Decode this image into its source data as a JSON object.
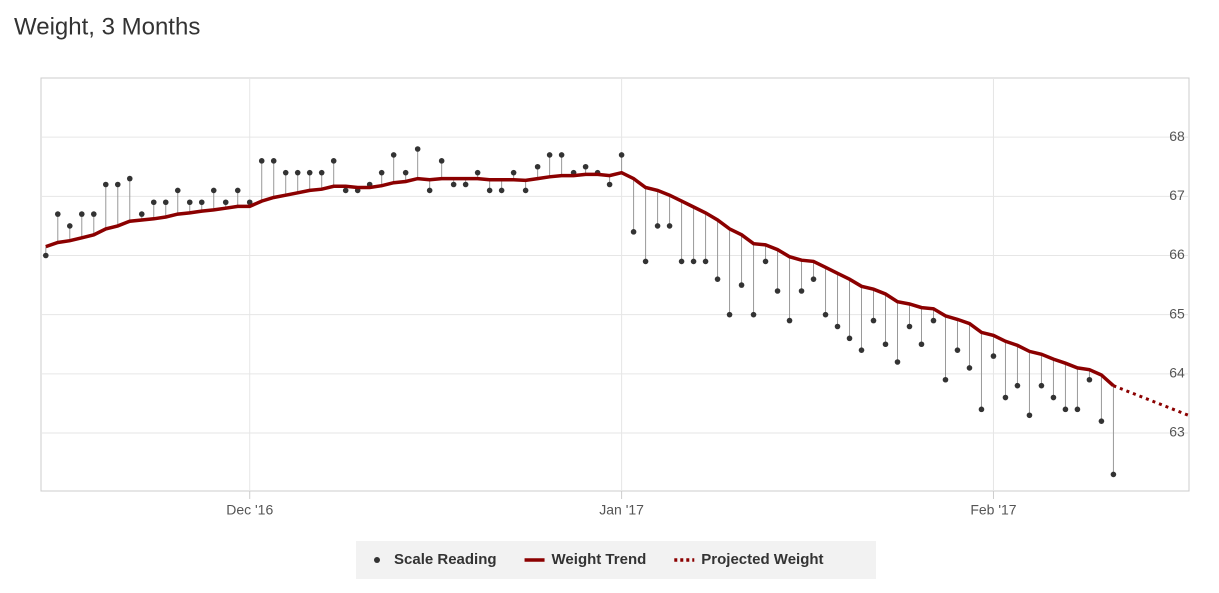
{
  "chart_data": {
    "type": "line",
    "title": "Weight, 3 Months",
    "x": [
      13,
      14,
      15,
      16,
      17,
      18,
      19,
      20,
      21,
      22,
      23,
      24,
      25,
      26,
      27,
      28,
      29,
      30,
      31,
      32,
      33,
      34,
      35,
      36,
      37,
      38,
      39,
      40,
      41,
      42,
      43,
      44,
      45,
      46,
      47,
      48,
      49,
      50,
      51,
      52,
      53,
      54,
      55,
      56,
      57,
      58,
      59,
      60,
      61,
      62,
      63,
      64,
      65,
      66,
      67,
      68,
      69,
      70,
      71,
      72,
      73,
      74,
      75,
      76,
      77,
      78,
      79,
      80,
      81,
      82,
      83,
      84,
      85,
      86,
      87,
      88,
      89,
      90,
      91,
      92,
      93,
      94,
      95,
      96,
      97,
      98,
      99,
      100,
      101,
      102
    ],
    "series": [
      {
        "name": "Scale Reading",
        "color": "#333333",
        "style": "markers",
        "values": [
          66.0,
          66.7,
          66.5,
          66.7,
          66.7,
          67.2,
          67.2,
          67.3,
          66.7,
          66.9,
          66.9,
          67.1,
          66.9,
          66.9,
          67.1,
          66.9,
          67.1,
          66.9,
          67.6,
          67.6,
          67.4,
          67.4,
          67.4,
          67.4,
          67.6,
          67.1,
          67.1,
          67.2,
          67.4,
          67.7,
          67.4,
          67.8,
          67.1,
          67.6,
          67.2,
          67.2,
          67.4,
          67.1,
          67.1,
          67.4,
          67.1,
          67.5,
          67.7,
          67.7,
          67.4,
          67.5,
          67.4,
          67.2,
          67.7,
          66.4,
          65.9,
          66.5,
          66.5,
          65.9,
          65.9,
          65.9,
          65.6,
          65.0,
          65.5,
          65.0,
          65.9,
          65.4,
          64.9,
          65.4,
          65.6,
          65.0,
          64.8,
          64.6,
          64.4,
          64.9,
          64.5,
          64.2,
          64.8,
          64.5,
          64.9,
          63.9,
          64.4,
          64.1,
          63.4,
          64.3,
          63.6,
          63.8,
          63.3,
          63.8,
          63.6,
          63.4,
          63.4,
          63.9,
          63.2,
          62.3
        ]
      },
      {
        "name": "Weight Trend",
        "color": "#8b0000",
        "style": "solid",
        "values": [
          66.15,
          66.22,
          66.25,
          66.3,
          66.35,
          66.45,
          66.5,
          66.58,
          66.6,
          66.62,
          66.65,
          66.7,
          66.72,
          66.75,
          66.77,
          66.8,
          66.83,
          66.83,
          66.92,
          66.98,
          67.02,
          67.06,
          67.1,
          67.12,
          67.17,
          67.17,
          67.15,
          67.15,
          67.18,
          67.23,
          67.25,
          67.3,
          67.28,
          67.3,
          67.3,
          67.3,
          67.3,
          67.28,
          67.28,
          67.28,
          67.27,
          67.3,
          67.33,
          67.35,
          67.35,
          67.37,
          67.37,
          67.35,
          67.4,
          67.3,
          67.15,
          67.1,
          67.02,
          66.92,
          66.82,
          66.72,
          66.6,
          66.45,
          66.35,
          66.2,
          66.18,
          66.1,
          65.98,
          65.92,
          65.9,
          65.8,
          65.7,
          65.6,
          65.48,
          65.43,
          65.35,
          65.22,
          65.18,
          65.12,
          65.1,
          64.98,
          64.92,
          64.85,
          64.7,
          64.65,
          64.55,
          64.48,
          64.38,
          64.33,
          64.25,
          64.18,
          64.1,
          64.07,
          63.98,
          63.8
        ]
      },
      {
        "name": "Projected Weight",
        "color": "#8b0000",
        "style": "dotted",
        "x": [
          102,
          108.25
        ],
        "values": [
          63.8,
          63.3
        ]
      }
    ],
    "xlim": [
      12.6,
      108.3
    ],
    "xticks": [
      {
        "value": 30,
        "label": "Dec '16"
      },
      {
        "value": 61,
        "label": "Jan '17"
      },
      {
        "value": 92,
        "label": "Feb '17"
      }
    ],
    "ylim": [
      62.02,
      69.0
    ],
    "yticks": [
      63,
      64,
      65,
      66,
      67,
      68
    ],
    "grid": true,
    "legend": "bottom"
  }
}
